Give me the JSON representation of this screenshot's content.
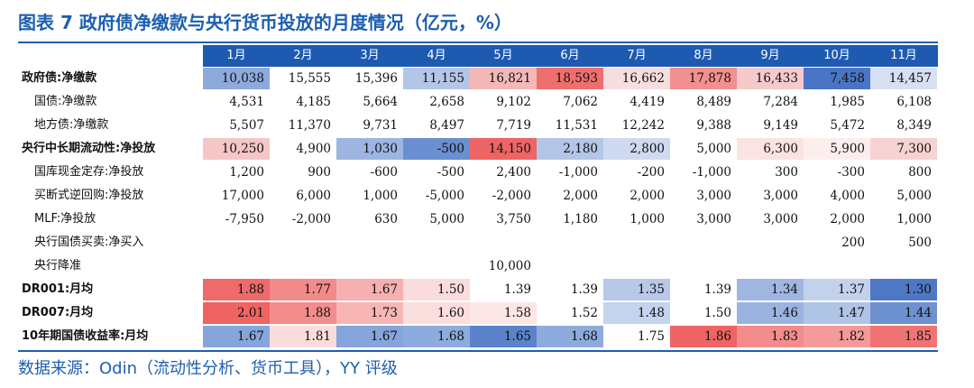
{
  "title": "图表 7 政府债净缴款与央行货币投放的月度情况（亿元，%）",
  "source": "数据来源：Odin（流动性分析、货币工具），YY 评级",
  "header_bg": "#1e5bb0",
  "months": [
    "1月",
    "2月",
    "3月",
    "4月",
    "5月",
    "6月",
    "7月",
    "8月",
    "9月",
    "10月",
    "11月"
  ],
  "rows": [
    {
      "label": "政府债:净缴款",
      "type": "main",
      "values": [
        "10,038",
        "15,555",
        "15,396",
        "11,155",
        "16,821",
        "18,593",
        "16,662",
        "17,878",
        "16,433",
        "7,458",
        "14,457"
      ],
      "colors": [
        "#8eaadb",
        "#ffffff",
        "#ffffff",
        "#b4c6e7",
        "#f4b8b8",
        "#ef6f6f",
        "#f7dede",
        "#f28f8f",
        "#f5caca",
        "#4a75c4",
        "#d6e0f2"
      ]
    },
    {
      "label": "国债:净缴款",
      "type": "sub",
      "values": [
        "4,531",
        "4,185",
        "5,664",
        "2,658",
        "9,102",
        "7,062",
        "4,419",
        "8,489",
        "7,284",
        "1,985",
        "6,108"
      ]
    },
    {
      "label": "地方债:净缴款",
      "type": "sub",
      "values": [
        "5,507",
        "11,370",
        "9,731",
        "8,497",
        "7,719",
        "11,531",
        "12,242",
        "9,388",
        "9,149",
        "5,472",
        "8,349"
      ]
    },
    {
      "label": "央行中长期流动性:净投放",
      "type": "main",
      "values": [
        "10,250",
        "4,900",
        "1,030",
        "-500",
        "14,150",
        "2,180",
        "2,800",
        "5,000",
        "6,300",
        "5,900",
        "7,300"
      ],
      "colors": [
        "#f5c6c6",
        "#ffffff",
        "#9db5e0",
        "#6a8fd0",
        "#ef6464",
        "#b4c6e7",
        "#cfdaf0",
        "#ffffff",
        "#fbe3e3",
        "#fdeeee",
        "#f7d2d2"
      ]
    },
    {
      "label": "国库现金定存:净投放",
      "type": "sub",
      "values": [
        "1,200",
        "900",
        "-600",
        "-500",
        "2,400",
        "-1,000",
        "-200",
        "-1,000",
        "300",
        "-300",
        "800"
      ]
    },
    {
      "label": "买断式逆回购:净投放",
      "type": "sub",
      "values": [
        "17,000",
        "6,000",
        "1,000",
        "-5,000",
        "-2,000",
        "2,000",
        "2,000",
        "3,000",
        "3,000",
        "4,000",
        "5,000"
      ]
    },
    {
      "label": "MLF:净投放",
      "type": "sub",
      "values": [
        "-7,950",
        "-2,000",
        "630",
        "5,000",
        "3,750",
        "1,180",
        "1,000",
        "3,000",
        "3,000",
        "2,000",
        "1,000"
      ]
    },
    {
      "label": "央行国债买卖:净买入",
      "type": "sub",
      "values": [
        "",
        "",
        "",
        "",
        "",
        "",
        "",
        "",
        "",
        "200",
        "500"
      ]
    },
    {
      "label": "央行降准",
      "type": "sub",
      "values": [
        "",
        "",
        "",
        "",
        "10,000",
        "",
        "",
        "",
        "",
        "",
        ""
      ]
    },
    {
      "label": "DR001:月均",
      "type": "main",
      "values": [
        "1.88",
        "1.77",
        "1.67",
        "1.50",
        "1.39",
        "1.39",
        "1.35",
        "1.39",
        "1.34",
        "1.37",
        "1.30"
      ],
      "colors": [
        "#ef6a6a",
        "#f38a8a",
        "#f6b0b0",
        "#fbdcdc",
        "#ffffff",
        "#ffffff",
        "#b7c8e8",
        "#ffffff",
        "#9fb7e0",
        "#c3d2ec",
        "#4d78c6"
      ]
    },
    {
      "label": "DR007:月均",
      "type": "main",
      "values": [
        "2.01",
        "1.88",
        "1.73",
        "1.60",
        "1.58",
        "1.52",
        "1.48",
        "1.50",
        "1.46",
        "1.47",
        "1.44"
      ],
      "colors": [
        "#ef6363",
        "#f38c8c",
        "#f7b5b5",
        "#fbdede",
        "#fce6e6",
        "#ffffff",
        "#c4d3ee",
        "#ffffff",
        "#9bb4df",
        "#b0c4e6",
        "#6e91d0"
      ]
    },
    {
      "label": "10年期国债收益率:月均",
      "type": "main",
      "values": [
        "1.67",
        "1.81",
        "1.67",
        "1.68",
        "1.65",
        "1.68",
        "1.75",
        "1.86",
        "1.83",
        "1.82",
        "1.85"
      ],
      "colors": [
        "#86a5db",
        "#fbdcdc",
        "#86a5db",
        "#8eabdd",
        "#5a83cc",
        "#8eabdd",
        "#ffffff",
        "#ef6464",
        "#f38c8c",
        "#f49a9a",
        "#f07474"
      ]
    }
  ]
}
